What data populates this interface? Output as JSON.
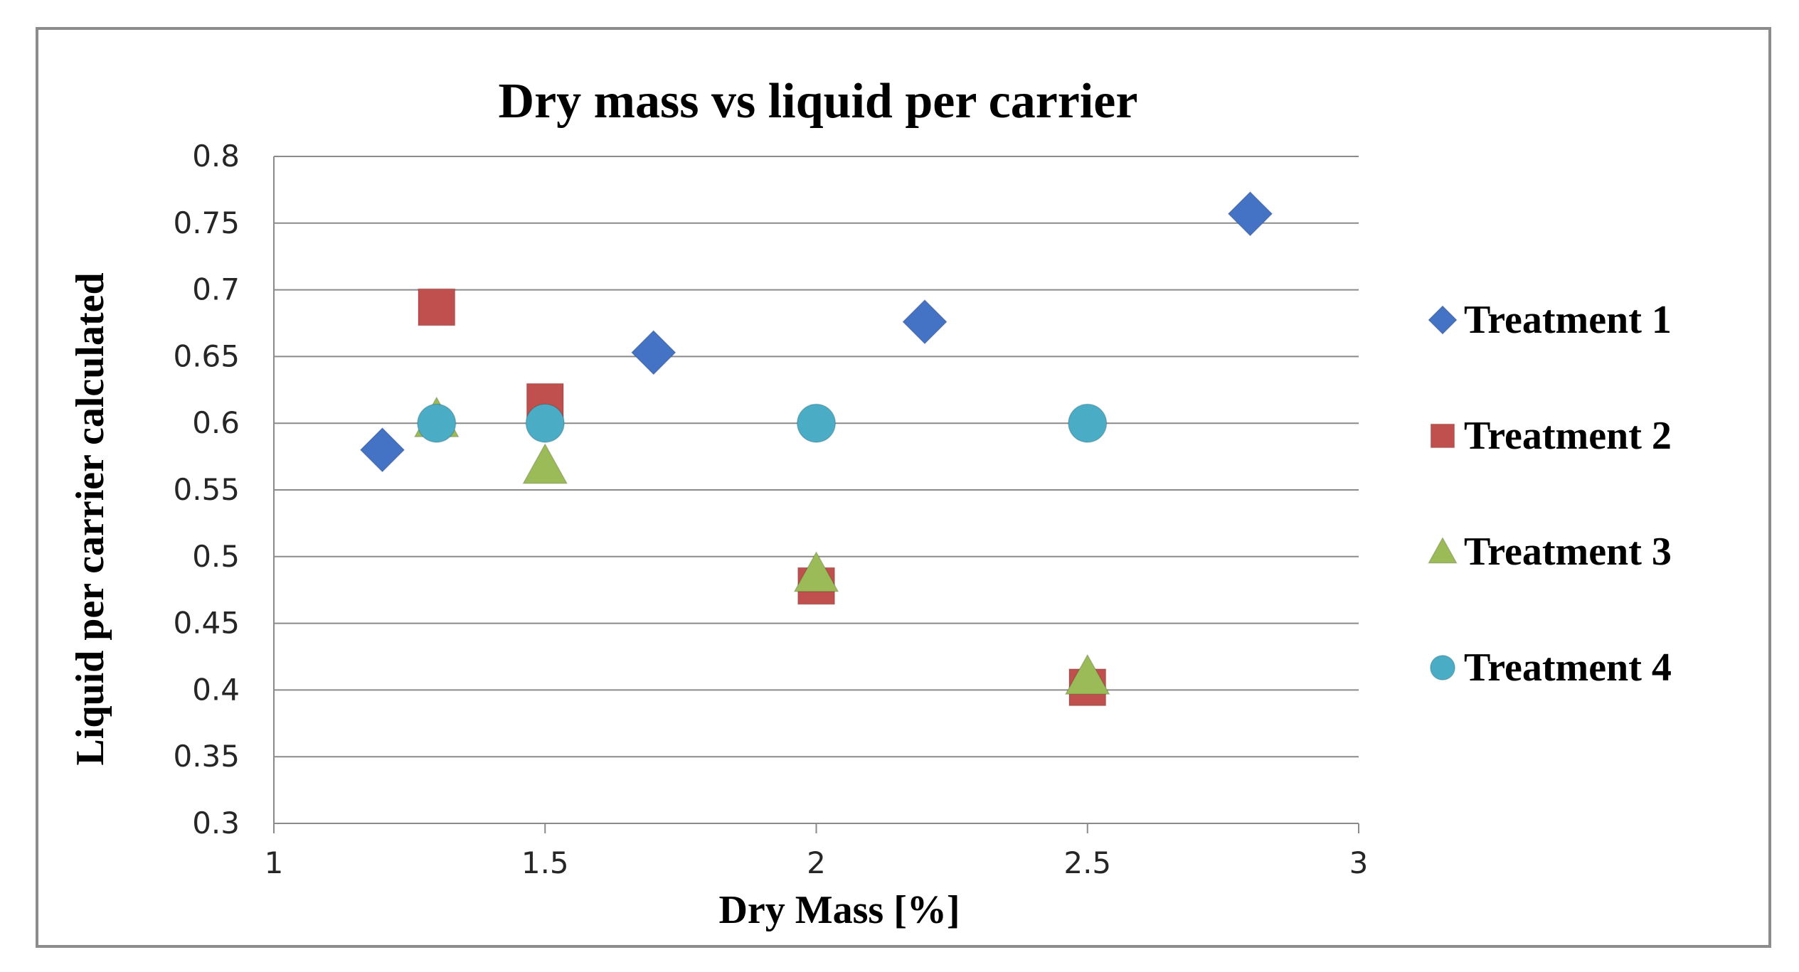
{
  "chart_data": {
    "type": "scatter",
    "title": "Dry mass vs liquid  per carrier",
    "xlabel": "Dry Mass [%]",
    "ylabel": "Liquid per carrier calculated",
    "xlim": [
      1,
      3
    ],
    "ylim": [
      0.3,
      0.8
    ],
    "xticks": [
      "1",
      "1.5",
      "2",
      "2.5",
      "3"
    ],
    "yticks": [
      "0.3",
      "0.35",
      "0.4",
      "0.45",
      "0.5",
      "0.55",
      "0.6",
      "0.65",
      "0.7",
      "0.75",
      "0.8"
    ],
    "grid": "horizontal",
    "legend_position": "right",
    "series": [
      {
        "name": "Treatment 1",
        "marker": "diamond",
        "color": "#4472c4",
        "points": [
          [
            1.2,
            0.58
          ],
          [
            1.7,
            0.653
          ],
          [
            2.2,
            0.676
          ],
          [
            2.8,
            0.757
          ]
        ]
      },
      {
        "name": "Treatment 2",
        "marker": "square",
        "color": "#c0504d",
        "points": [
          [
            1.3,
            0.687
          ],
          [
            1.5,
            0.616
          ],
          [
            2.0,
            0.478
          ],
          [
            2.5,
            0.402
          ]
        ]
      },
      {
        "name": "Treatment 3",
        "marker": "triangle",
        "color": "#9bbb59",
        "points": [
          [
            1.3,
            0.603
          ],
          [
            1.5,
            0.568
          ],
          [
            2.0,
            0.487
          ],
          [
            2.5,
            0.41
          ]
        ]
      },
      {
        "name": "Treatment 4",
        "marker": "circle",
        "color": "#4bacc6",
        "points": [
          [
            1.3,
            0.6
          ],
          [
            1.5,
            0.6
          ],
          [
            2.0,
            0.6
          ],
          [
            2.5,
            0.6
          ]
        ]
      }
    ]
  }
}
